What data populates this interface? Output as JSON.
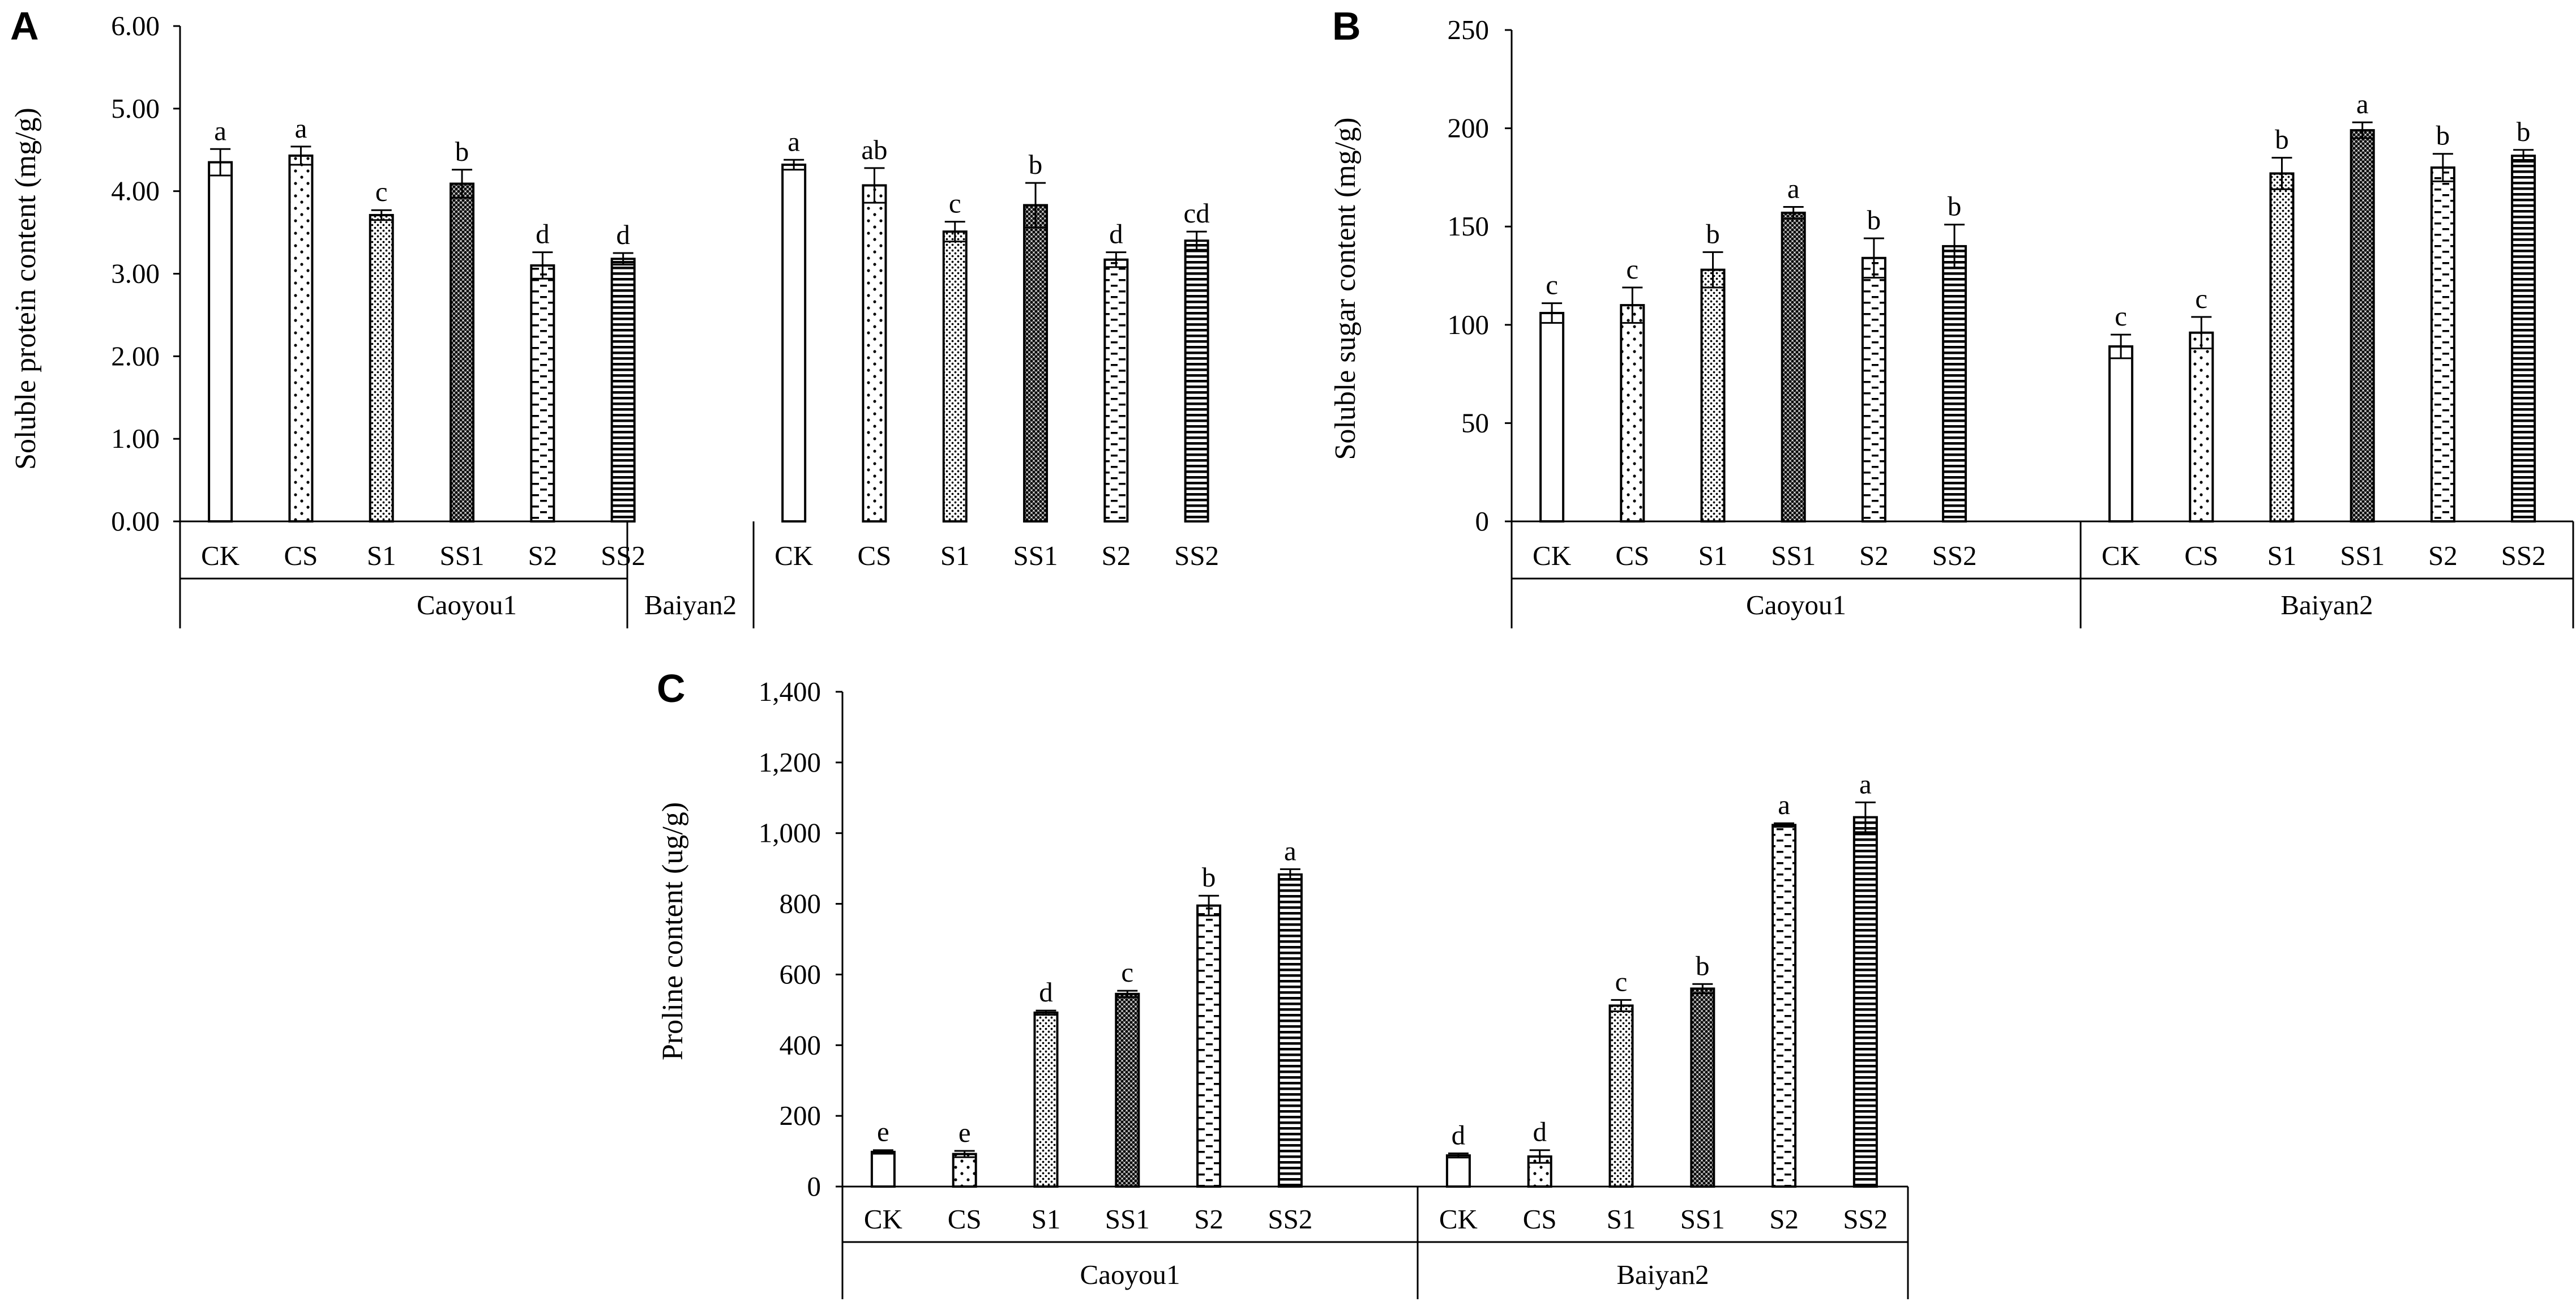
{
  "figure": {
    "patterns": [
      "blank",
      "sparse-dots",
      "fine-dots",
      "dense-dots",
      "short-dashes",
      "horizontal-lines"
    ]
  },
  "chart_data": [
    {
      "panel": "A",
      "type": "bar",
      "ylabel": "Soluble protein content (mg/g)",
      "ylim": [
        0,
        6
      ],
      "yticks": [
        "0.00",
        "1.00",
        "2.00",
        "3.00",
        "4.00",
        "5.00",
        "6.00"
      ],
      "groups": [
        {
          "name": "Caoyou1",
          "categories": [
            "CK",
            "CS",
            "S1",
            "SS1",
            "S2",
            "SS2"
          ],
          "values": [
            4.35,
            4.43,
            3.71,
            4.09,
            3.1,
            3.18
          ],
          "errors": [
            0.16,
            0.11,
            0.06,
            0.17,
            0.16,
            0.07
          ],
          "letters": [
            "a",
            "a",
            "c",
            "b",
            "d",
            "d"
          ]
        },
        {
          "name": "Baiyan2",
          "categories": [
            "CK",
            "CS",
            "S1",
            "SS1",
            "S2",
            "SS2"
          ],
          "values": [
            4.32,
            4.07,
            3.51,
            3.83,
            3.17,
            3.4
          ],
          "errors": [
            0.06,
            0.21,
            0.12,
            0.27,
            0.09,
            0.11
          ],
          "letters": [
            "a",
            "ab",
            "c",
            "b",
            "d",
            "cd"
          ]
        }
      ]
    },
    {
      "panel": "B",
      "type": "bar",
      "ylabel": "Soluble sugar content (mg/g)",
      "ylim": [
        0,
        250
      ],
      "yticks": [
        "0",
        "50",
        "100",
        "150",
        "200",
        "250"
      ],
      "groups": [
        {
          "name": "Caoyou1",
          "categories": [
            "CK",
            "CS",
            "S1",
            "SS1",
            "S2",
            "SS2"
          ],
          "values": [
            106,
            110,
            128,
            157,
            134,
            140
          ],
          "errors": [
            5,
            9,
            9,
            3,
            10,
            11
          ],
          "letters": [
            "c",
            "c",
            "b",
            "a",
            "b",
            "b"
          ]
        },
        {
          "name": "Baiyan2",
          "categories": [
            "CK",
            "CS",
            "S1",
            "SS1",
            "S2",
            "SS2"
          ],
          "values": [
            89,
            96,
            177,
            199,
            180,
            186
          ],
          "errors": [
            6,
            8,
            8,
            4,
            7,
            3
          ],
          "letters": [
            "c",
            "c",
            "b",
            "a",
            "b",
            "b"
          ]
        }
      ]
    },
    {
      "panel": "C",
      "type": "bar",
      "ylabel": "Proline content (ug/g)",
      "ylim": [
        0,
        1400
      ],
      "yticks": [
        "0",
        "200",
        "400",
        "600",
        "800",
        "1,000",
        "1,200",
        "1,400"
      ],
      "groups": [
        {
          "name": "Caoyou1",
          "categories": [
            "CK",
            "CS",
            "S1",
            "SS1",
            "S2",
            "SS2"
          ],
          "values": [
            98,
            92,
            492,
            545,
            795,
            883
          ],
          "errors": [
            5,
            9,
            6,
            9,
            28,
            15
          ],
          "letters": [
            "e",
            "e",
            "d",
            "c",
            "b",
            "a"
          ]
        },
        {
          "name": "Baiyan2",
          "categories": [
            "CK",
            "CS",
            "S1",
            "SS1",
            "S2",
            "SS2"
          ],
          "values": [
            88,
            85,
            512,
            560,
            1023,
            1045
          ],
          "errors": [
            6,
            18,
            16,
            13,
            5,
            42
          ],
          "letters": [
            "d",
            "d",
            "c",
            "b",
            "a",
            "a"
          ]
        }
      ]
    }
  ]
}
